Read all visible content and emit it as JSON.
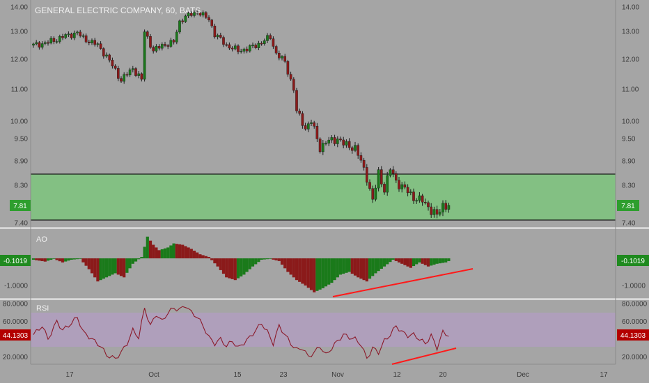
{
  "title": "GENERAL ELECTRIC COMPANY, 60, BATS",
  "colors": {
    "background": "#a5a5a5",
    "up": "#1a7a1a",
    "down": "#8b1a1a",
    "zone_fill": "#7cc47c",
    "rsi_band": "#b49cc4",
    "trendline": "#ff1a1a",
    "rsi_line": "#8b1a2a",
    "price_tag": "#2e9e2e",
    "rsi_tag": "#b30000",
    "ao_tag": "#1f8a1f"
  },
  "chart_data": [
    {
      "type": "candlestick",
      "name": "price",
      "x_ticks": [
        "17",
        "Oct",
        "15",
        "23",
        "Nov",
        "12",
        "20",
        "Dec",
        "17"
      ],
      "y_ticks": [
        "14.00",
        "13.00",
        "12.00",
        "11.00",
        "10.00",
        "9.50",
        "8.90",
        "8.30",
        "7.40"
      ],
      "last_value": "7.81",
      "path": [
        [
          0,
          12.5
        ],
        [
          5,
          12.6
        ],
        [
          10,
          12.8
        ],
        [
          15,
          12.95
        ],
        [
          17,
          12.75
        ],
        [
          22,
          12.5
        ],
        [
          25,
          12.1
        ],
        [
          30,
          11.3
        ],
        [
          34,
          11.7
        ],
        [
          37,
          11.3
        ],
        [
          38,
          13.0
        ],
        [
          41,
          12.3
        ],
        [
          44,
          12.5
        ],
        [
          48,
          12.6
        ],
        [
          50,
          13.4
        ],
        [
          52,
          13.6
        ],
        [
          56,
          13.8
        ],
        [
          60,
          13.5
        ],
        [
          62,
          12.9
        ],
        [
          66,
          12.5
        ],
        [
          70,
          12.3
        ],
        [
          74,
          12.4
        ],
        [
          78,
          12.6
        ],
        [
          81,
          12.8
        ],
        [
          83,
          12.2
        ],
        [
          86,
          11.9
        ],
        [
          89,
          11.0
        ],
        [
          90,
          10.3
        ],
        [
          93,
          9.8
        ],
        [
          95,
          10.0
        ],
        [
          98,
          9.25
        ],
        [
          100,
          9.4
        ],
        [
          104,
          9.5
        ],
        [
          106,
          9.35
        ],
        [
          110,
          9.25
        ],
        [
          114,
          8.5
        ],
        [
          116,
          7.9
        ],
        [
          118,
          8.6
        ],
        [
          120,
          8.2
        ],
        [
          122,
          8.7
        ],
        [
          124,
          8.4
        ],
        [
          127,
          8.2
        ],
        [
          130,
          8.0
        ],
        [
          133,
          7.9
        ],
        [
          136,
          7.7
        ],
        [
          138,
          7.55
        ],
        [
          140,
          7.8
        ],
        [
          142,
          7.81
        ]
      ],
      "support_zone": [
        7.45,
        8.55
      ]
    },
    {
      "type": "histogram",
      "name": "AO",
      "y_ticks": [
        "-1.0000"
      ],
      "last_value": "-0.1019",
      "path": [
        [
          0,
          -0.05
        ],
        [
          4,
          -0.12
        ],
        [
          7,
          -0.02
        ],
        [
          10,
          -0.15
        ],
        [
          13,
          -0.05
        ],
        [
          16,
          -0.02
        ],
        [
          19,
          -0.4
        ],
        [
          22,
          -0.85
        ],
        [
          25,
          -0.7
        ],
        [
          28,
          -0.55
        ],
        [
          31,
          -0.7
        ],
        [
          34,
          -0.2
        ],
        [
          37,
          0.05
        ],
        [
          39,
          0.8
        ],
        [
          41,
          0.5
        ],
        [
          43,
          0.3
        ],
        [
          46,
          0.4
        ],
        [
          48,
          0.55
        ],
        [
          51,
          0.5
        ],
        [
          54,
          0.35
        ],
        [
          57,
          0.15
        ],
        [
          60,
          0.05
        ],
        [
          63,
          -0.3
        ],
        [
          66,
          -0.7
        ],
        [
          69,
          -0.8
        ],
        [
          72,
          -0.6
        ],
        [
          75,
          -0.3
        ],
        [
          78,
          -0.05
        ],
        [
          81,
          -0.02
        ],
        [
          84,
          -0.1
        ],
        [
          87,
          -0.5
        ],
        [
          90,
          -0.8
        ],
        [
          93,
          -1.0
        ],
        [
          96,
          -1.25
        ],
        [
          99,
          -1.1
        ],
        [
          102,
          -0.9
        ],
        [
          105,
          -0.6
        ],
        [
          108,
          -0.5
        ],
        [
          111,
          -0.7
        ],
        [
          114,
          -0.85
        ],
        [
          117,
          -0.55
        ],
        [
          120,
          -0.3
        ],
        [
          123,
          -0.05
        ],
        [
          126,
          -0.2
        ],
        [
          129,
          -0.35
        ],
        [
          132,
          -0.15
        ],
        [
          135,
          -0.3
        ],
        [
          138,
          -0.2
        ],
        [
          141,
          -0.15
        ],
        [
          142,
          -0.1019
        ]
      ]
    },
    {
      "type": "line",
      "name": "RSI",
      "y_ticks": [
        "80.0000",
        "60.0000",
        "20.0000"
      ],
      "last_value": "44.1303",
      "band": [
        30,
        70
      ],
      "path": [
        [
          0,
          45
        ],
        [
          3,
          55
        ],
        [
          5,
          40
        ],
        [
          8,
          60
        ],
        [
          10,
          50
        ],
        [
          13,
          58
        ],
        [
          15,
          65
        ],
        [
          17,
          48
        ],
        [
          20,
          40
        ],
        [
          23,
          32
        ],
        [
          25,
          22
        ],
        [
          28,
          18
        ],
        [
          30,
          25
        ],
        [
          32,
          35
        ],
        [
          34,
          50
        ],
        [
          36,
          42
        ],
        [
          38,
          75
        ],
        [
          40,
          55
        ],
        [
          42,
          68
        ],
        [
          44,
          60
        ],
        [
          46,
          70
        ],
        [
          48,
          75
        ],
        [
          50,
          73
        ],
        [
          52,
          78
        ],
        [
          54,
          70
        ],
        [
          56,
          65
        ],
        [
          58,
          55
        ],
        [
          60,
          42
        ],
        [
          62,
          35
        ],
        [
          64,
          40
        ],
        [
          66,
          32
        ],
        [
          68,
          38
        ],
        [
          70,
          30
        ],
        [
          72,
          36
        ],
        [
          74,
          42
        ],
        [
          76,
          50
        ],
        [
          78,
          58
        ],
        [
          80,
          48
        ],
        [
          82,
          35
        ],
        [
          84,
          55
        ],
        [
          86,
          45
        ],
        [
          88,
          35
        ],
        [
          90,
          28
        ],
        [
          92,
          30
        ],
        [
          94,
          20
        ],
        [
          96,
          25
        ],
        [
          98,
          32
        ],
        [
          100,
          22
        ],
        [
          102,
          30
        ],
        [
          104,
          38
        ],
        [
          106,
          45
        ],
        [
          108,
          42
        ],
        [
          110,
          40
        ],
        [
          112,
          34
        ],
        [
          114,
          18
        ],
        [
          116,
          30
        ],
        [
          118,
          25
        ],
        [
          120,
          38
        ],
        [
          122,
          45
        ],
        [
          124,
          55
        ],
        [
          126,
          48
        ],
        [
          128,
          44
        ],
        [
          130,
          45
        ],
        [
          132,
          40
        ],
        [
          134,
          35
        ],
        [
          136,
          44
        ],
        [
          138,
          30
        ],
        [
          140,
          48
        ],
        [
          142,
          44.13
        ]
      ]
    }
  ]
}
